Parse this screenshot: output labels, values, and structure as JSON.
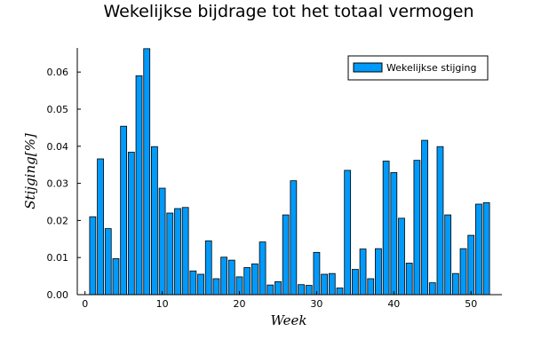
{
  "chart_data": {
    "type": "bar",
    "title": "Wekelijkse bijdrage tot het totaal vermogen",
    "xlabel": "Week",
    "ylabel": "Stijging[%]",
    "xlim": [
      -1,
      54
    ],
    "ylim": [
      0,
      0.0665
    ],
    "xticks": [
      0,
      10,
      20,
      30,
      40,
      50
    ],
    "yticks": [
      0.0,
      0.01,
      0.02,
      0.03,
      0.04,
      0.05,
      0.06
    ],
    "ytick_labels": [
      "0.00",
      "0.01",
      "0.02",
      "0.03",
      "0.04",
      "0.05",
      "0.06"
    ],
    "grid": false,
    "legend_position": "top-right",
    "series": [
      {
        "name": "Wekelijkse stijging",
        "color": "#009AFA",
        "x": [
          1,
          2,
          3,
          4,
          5,
          6,
          7,
          8,
          9,
          10,
          11,
          12,
          13,
          14,
          15,
          16,
          17,
          18,
          19,
          20,
          21,
          22,
          23,
          24,
          25,
          26,
          27,
          28,
          29,
          30,
          31,
          32,
          33,
          34,
          35,
          36,
          37,
          38,
          39,
          40,
          41,
          42,
          43,
          44,
          45,
          46,
          47,
          48,
          49,
          50,
          51,
          52
        ],
        "values": [
          0.021,
          0.0366,
          0.0178,
          0.0097,
          0.0454,
          0.0384,
          0.059,
          0.0663,
          0.0399,
          0.0287,
          0.022,
          0.0232,
          0.0235,
          0.0064,
          0.0055,
          0.0145,
          0.0043,
          0.0101,
          0.0093,
          0.0048,
          0.0073,
          0.0083,
          0.0142,
          0.0026,
          0.0035,
          0.0215,
          0.0307,
          0.0027,
          0.0025,
          0.0114,
          0.0055,
          0.0057,
          0.0018,
          0.0335,
          0.0068,
          0.0123,
          0.0043,
          0.0124,
          0.036,
          0.0329,
          0.0206,
          0.0085,
          0.0362,
          0.0416,
          0.0032,
          0.0399,
          0.0215,
          0.0057,
          0.0124,
          0.016,
          0.0244,
          0.0248
        ]
      }
    ]
  }
}
